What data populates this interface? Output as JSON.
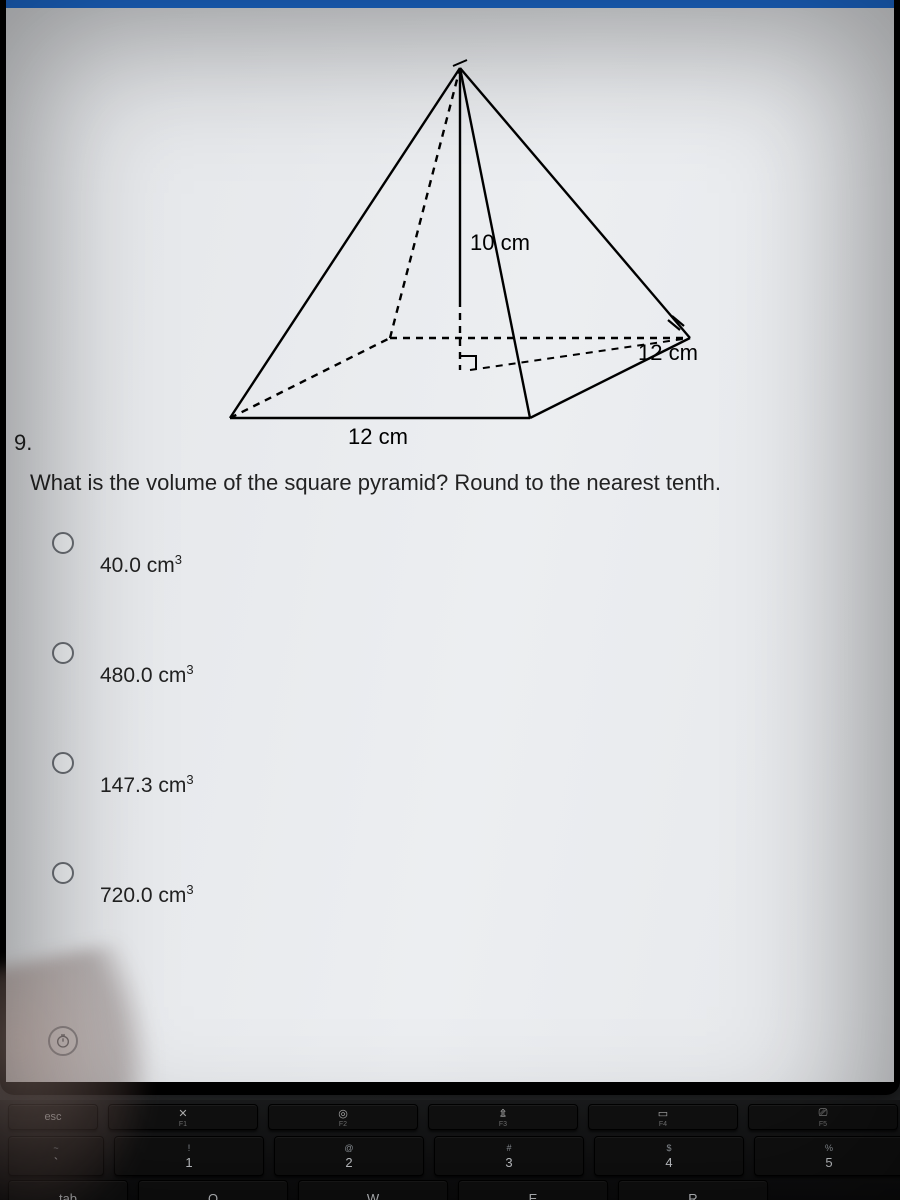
{
  "question": {
    "number": "9.",
    "text": "What is the volume of the square pyramid? Round to the nearest tenth."
  },
  "figure": {
    "type": "pyramid-diagram",
    "height_label": "10 cm",
    "base_front_label": "12 cm",
    "base_side_label": "12 cm",
    "stroke": "#000000",
    "dash": "6,5",
    "label_fontsize": 22
  },
  "options": [
    {
      "value": "40.0",
      "unit": "cm",
      "exp": "3"
    },
    {
      "value": "480.0",
      "unit": "cm",
      "exp": "3"
    },
    {
      "value": "147.3",
      "unit": "cm",
      "exp": "3"
    },
    {
      "value": "720.0",
      "unit": "cm",
      "exp": "3"
    }
  ],
  "keyboard": {
    "fn": [
      {
        "sym": "esc",
        "lab": ""
      },
      {
        "sym": "✕",
        "lab": "F1"
      },
      {
        "sym": "◎",
        "lab": "F2"
      },
      {
        "sym": "⇭",
        "lab": "F3"
      },
      {
        "sym": "▭",
        "lab": "F4"
      },
      {
        "sym": "⎚",
        "lab": "F5"
      }
    ],
    "num": [
      {
        "top": "~",
        "bot": "`"
      },
      {
        "top": "!",
        "bot": "1"
      },
      {
        "top": "@",
        "bot": "2"
      },
      {
        "top": "#",
        "bot": "3"
      },
      {
        "top": "$",
        "bot": "4"
      },
      {
        "top": "%",
        "bot": "5"
      }
    ],
    "alpha": [
      {
        "bot": "tab"
      },
      {
        "bot": "Q"
      },
      {
        "bot": "W"
      },
      {
        "bot": "E"
      },
      {
        "bot": "R"
      }
    ]
  },
  "colors": {
    "page_bg": "#e9ebee",
    "text": "#222222",
    "radio_border": "#6b6f75",
    "blue_bar": "#1e6fd9"
  }
}
